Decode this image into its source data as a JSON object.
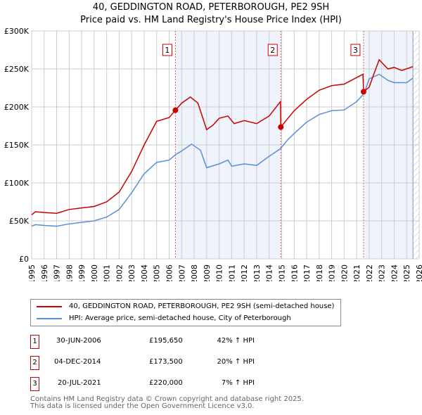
{
  "title": "40, GEDDINGTON ROAD, PETERBOROUGH, PE2 9SH",
  "subtitle": "Price paid vs. HM Land Registry's House Price Index (HPI)",
  "chart_data": {
    "type": "line",
    "ylim": [
      0,
      300000
    ],
    "xlim": [
      1995,
      2026
    ],
    "yticks": [
      {
        "v": 0,
        "label": "£0"
      },
      {
        "v": 50000,
        "label": "£50K"
      },
      {
        "v": 100000,
        "label": "£100K"
      },
      {
        "v": 150000,
        "label": "£150K"
      },
      {
        "v": 200000,
        "label": "£200K"
      },
      {
        "v": 250000,
        "label": "£250K"
      },
      {
        "v": 300000,
        "label": "£300K"
      }
    ],
    "xticks": [
      "1995",
      "1996",
      "1997",
      "1998",
      "1999",
      "2000",
      "2001",
      "2002",
      "2003",
      "2004",
      "2005",
      "2006",
      "2007",
      "2008",
      "2009",
      "2010",
      "2011",
      "2012",
      "2013",
      "2014",
      "2015",
      "2016",
      "2017",
      "2018",
      "2019",
      "2020",
      "2021",
      "2022",
      "2023",
      "2024",
      "2025",
      "2026"
    ],
    "shaded": [
      [
        2006.5,
        2014.93
      ],
      [
        2021.55,
        2025.5
      ]
    ],
    "hatched_from": 2025.5,
    "series": [
      {
        "name": "40, GEDDINGTON ROAD, PETERBOROUGH, PE2 9SH (semi-detached house)",
        "color": "#cc0000",
        "x": [
          1995,
          1995.3,
          1996,
          1997,
          1998,
          1999,
          2000,
          2001,
          2002,
          2003,
          2004,
          2005,
          2006,
          2006.5,
          2007,
          2007.7,
          2008.3,
          2009,
          2009.5,
          2010,
          2010.7,
          2011.2,
          2012,
          2013,
          2014,
          2014.9,
          2014.93,
          2015.5,
          2016,
          2017,
          2018,
          2019,
          2020,
          2021.5,
          2021.55,
          2022,
          2022.3,
          2022.8,
          2023.5,
          2024,
          2024.6,
          2025.5
        ],
        "y": [
          58000,
          62000,
          61000,
          60000,
          65000,
          67000,
          69000,
          75000,
          88000,
          115000,
          150000,
          181000,
          186000,
          195650,
          205000,
          213000,
          205000,
          170000,
          176000,
          185000,
          188000,
          178000,
          182000,
          178000,
          188000,
          207000,
          173500,
          185000,
          195000,
          210000,
          222000,
          228000,
          230000,
          243000,
          220000,
          226000,
          240000,
          262000,
          250000,
          252000,
          248000,
          253000
        ]
      },
      {
        "name": "HPI: Average price, semi-detached house, City of Peterborough",
        "color": "#5b8fd4",
        "x": [
          1995,
          1995.3,
          1996,
          1997,
          1998,
          1999,
          2000,
          2001,
          2002,
          2003,
          2004,
          2005,
          2006,
          2006.5,
          2007,
          2007.8,
          2008.5,
          2009,
          2010,
          2010.7,
          2011,
          2012,
          2013,
          2014,
          2014.9,
          2015.5,
          2016,
          2017,
          2018,
          2019,
          2020,
          2021,
          2021.6,
          2022,
          2022.8,
          2023.5,
          2024,
          2025,
          2025.5
        ],
        "y": [
          43000,
          45000,
          44000,
          43000,
          46000,
          48000,
          50000,
          55000,
          65000,
          87000,
          112000,
          127000,
          130000,
          137000,
          142000,
          151000,
          143000,
          120000,
          125000,
          130000,
          122000,
          125000,
          123000,
          135000,
          145000,
          157000,
          165000,
          180000,
          190000,
          195000,
          196000,
          207000,
          218000,
          237000,
          243000,
          235000,
          232000,
          232000,
          238000
        ]
      }
    ],
    "sales": [
      {
        "n": "1",
        "x": 2006.5,
        "y": 195650
      },
      {
        "n": "2",
        "x": 2014.93,
        "y": 173500
      },
      {
        "n": "3",
        "x": 2021.55,
        "y": 220000
      }
    ]
  },
  "legend": [
    "40, GEDDINGTON ROAD, PETERBOROUGH, PE2 9SH (semi-detached house)",
    "HPI: Average price, semi-detached house, City of Peterborough"
  ],
  "transactions": [
    {
      "n": "1",
      "date": "30-JUN-2006",
      "price": "£195,650",
      "hpi": "42% ↑ HPI"
    },
    {
      "n": "2",
      "date": "04-DEC-2014",
      "price": "£173,500",
      "hpi": "20% ↑ HPI"
    },
    {
      "n": "3",
      "date": "20-JUL-2021",
      "price": "£220,000",
      "hpi": "7% ↑ HPI"
    }
  ],
  "footer": [
    "Contains HM Land Registry data © Crown copyright and database right 2025.",
    "This data is licensed under the Open Government Licence v3.0."
  ]
}
